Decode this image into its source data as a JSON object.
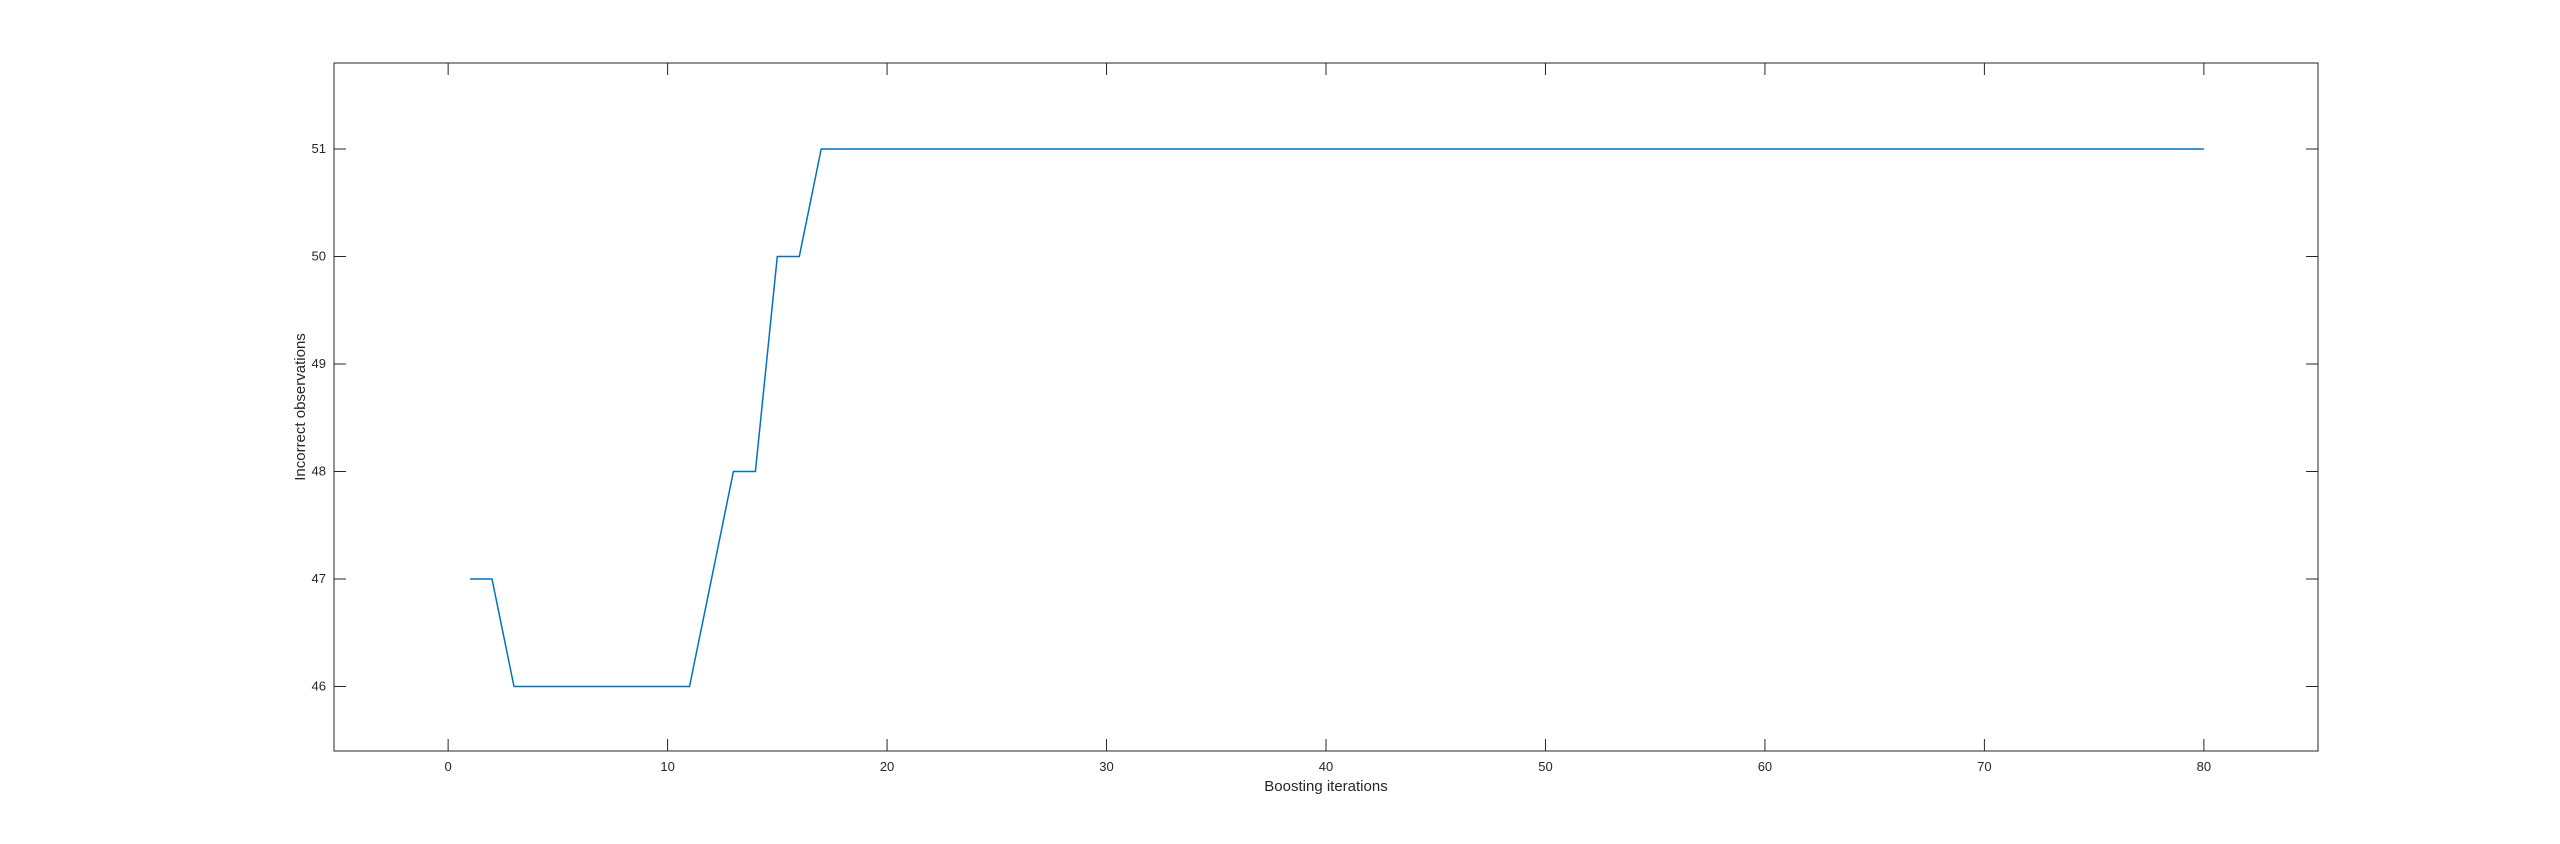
{
  "chart_data": {
    "type": "line",
    "title": "",
    "xlabel": "Boosting iterations",
    "ylabel": "Incorrect observations",
    "xlim": [
      -5.2,
      85.2
    ],
    "ylim": [
      45.4,
      51.8
    ],
    "xticks": [
      0,
      10,
      20,
      30,
      40,
      50,
      60,
      70,
      80
    ],
    "yticks": [
      46,
      47,
      48,
      49,
      50,
      51
    ],
    "grid": false,
    "legend": "none",
    "series": [
      {
        "color": "#0072BD",
        "x": [
          1,
          2,
          3,
          4,
          5,
          6,
          7,
          8,
          9,
          10,
          11,
          12,
          13,
          14,
          15,
          16,
          17,
          18,
          19,
          20,
          21,
          22,
          23,
          24,
          25,
          26,
          27,
          28,
          29,
          30,
          31,
          32,
          33,
          34,
          35,
          36,
          37,
          38,
          39,
          40,
          41,
          42,
          43,
          44,
          45,
          46,
          47,
          48,
          49,
          50,
          51,
          52,
          53,
          54,
          55,
          56,
          57,
          58,
          59,
          60,
          61,
          62,
          63,
          64,
          65,
          66,
          67,
          68,
          69,
          70,
          71,
          72,
          73,
          74,
          75,
          76,
          77,
          78,
          79,
          80
        ],
        "y": [
          47,
          47,
          46,
          46,
          46,
          46,
          46,
          46,
          46,
          46,
          46,
          47,
          48,
          48,
          50,
          50,
          51,
          51,
          51,
          51,
          51,
          51,
          51,
          51,
          51,
          51,
          51,
          51,
          51,
          51,
          51,
          51,
          51,
          51,
          51,
          51,
          51,
          51,
          51,
          51,
          51,
          51,
          51,
          51,
          51,
          51,
          51,
          51,
          51,
          51,
          51,
          51,
          51,
          51,
          51,
          51,
          51,
          51,
          51,
          51,
          51,
          51,
          51,
          51,
          51,
          51,
          51,
          51,
          51,
          51,
          51,
          51,
          51,
          51,
          51,
          51,
          51,
          51,
          51,
          51
        ]
      }
    ]
  }
}
